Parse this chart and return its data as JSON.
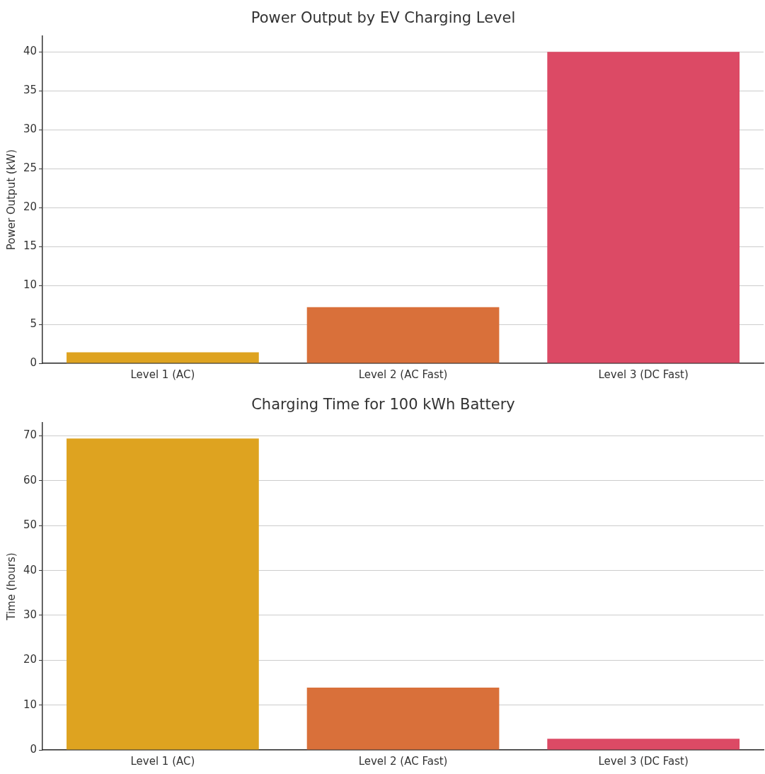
{
  "chart_data": [
    {
      "type": "bar",
      "title": "Power Output by EV Charging Level",
      "ylabel": "Power Output (kW)",
      "categories": [
        "Level 1 (AC)",
        "Level 2 (AC Fast)",
        "Level 3 (DC Fast)"
      ],
      "values": [
        1.4,
        7.2,
        40
      ],
      "colors": [
        "#dea320",
        "#d9703a",
        "#dc4a65"
      ],
      "ylim": [
        0,
        42
      ],
      "yticks": [
        0,
        5,
        10,
        15,
        20,
        25,
        30,
        35,
        40
      ],
      "grid": "y"
    },
    {
      "type": "bar",
      "title": "Charging Time for 100 kWh Battery",
      "ylabel": "Time (hours)",
      "categories": [
        "Level 1 (AC)",
        "Level 2 (AC Fast)",
        "Level 3 (DC Fast)"
      ],
      "values": [
        69.4,
        13.9,
        2.5
      ],
      "colors": [
        "#dea320",
        "#d9703a",
        "#dc4a65"
      ],
      "ylim": [
        0,
        72.9
      ],
      "yticks": [
        0,
        10,
        20,
        30,
        40,
        50,
        60,
        70
      ],
      "grid": "y"
    }
  ]
}
